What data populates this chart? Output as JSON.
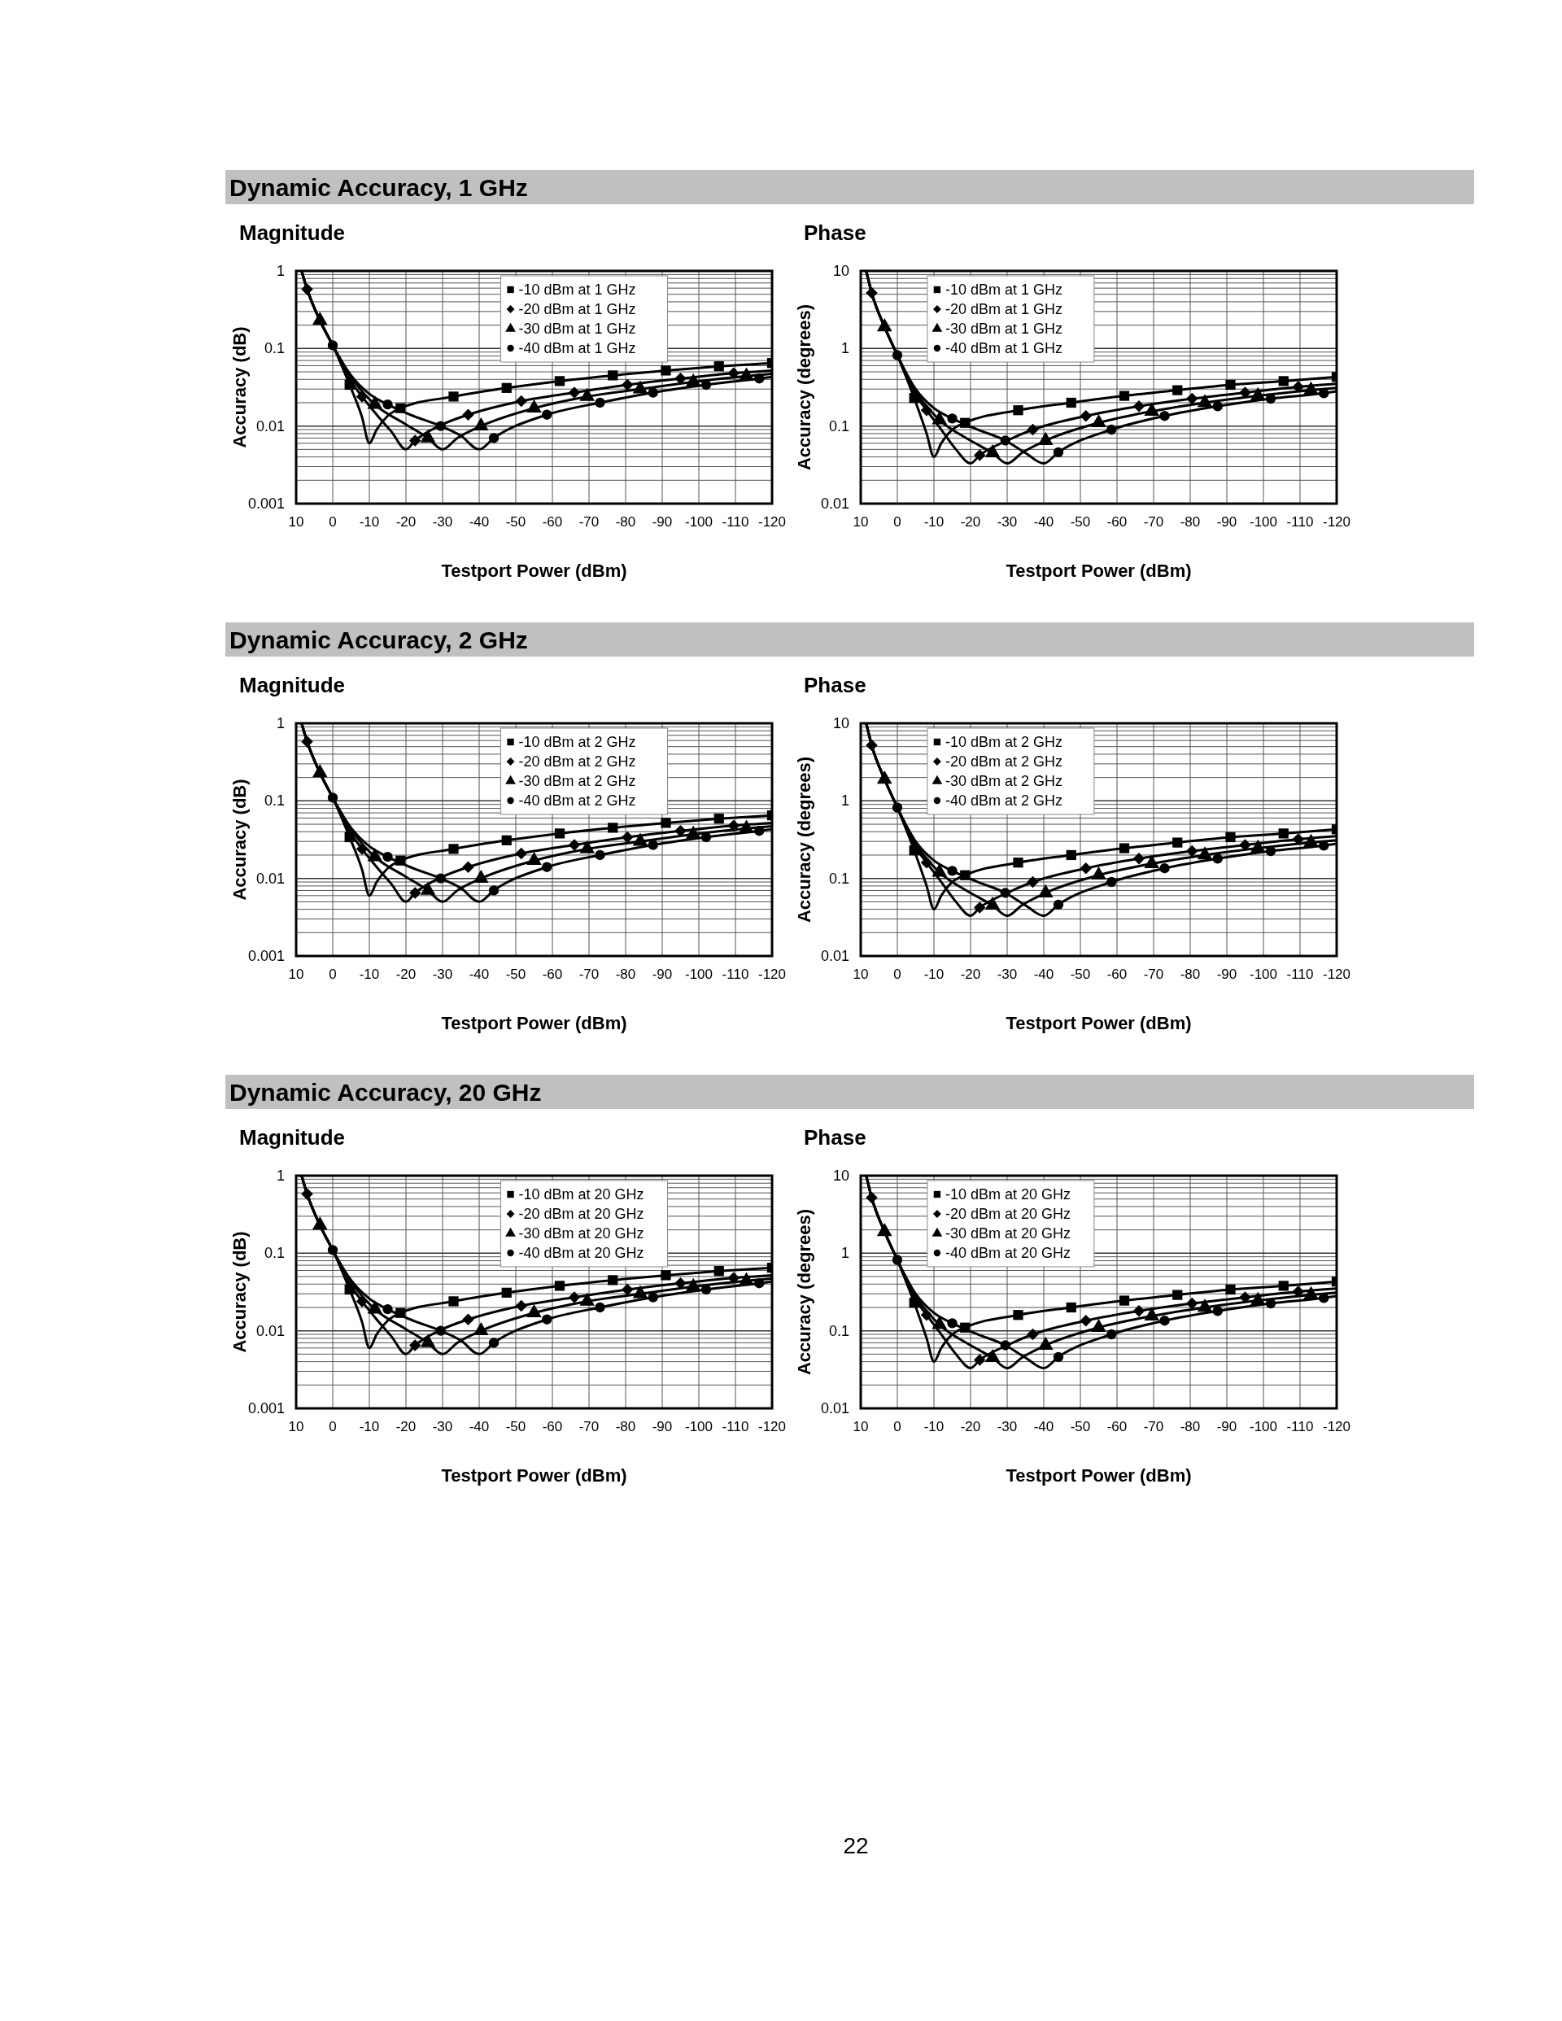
{
  "chart_data": [
    {
      "type": "line",
      "title": "Dynamic Accuracy, 1 GHz",
      "subtitle": "Magnitude",
      "xlabel": "Testport Power (dBm)",
      "ylabel": "Accuracy (dB)",
      "xlim": [
        10,
        -120
      ],
      "xticks": [
        10,
        0,
        -10,
        -20,
        -30,
        -40,
        -50,
        -60,
        -70,
        -80,
        -90,
        -100,
        -110,
        -120
      ],
      "ylim": [
        0.001,
        1
      ],
      "yticks": [
        0.001,
        0.01,
        0.1,
        1
      ],
      "log": true,
      "grid": true,
      "legend": "top",
      "series": [
        {
          "type": "line",
          "marker": "none",
          "color": "#000000",
          "x": [
            8.5,
            7,
            3.5,
            0,
            -4.6,
            -8,
            -10,
            -12,
            -15,
            -18.5,
            -33,
            -47.5,
            -62,
            -76.5,
            -91,
            -105.5,
            -120
          ],
          "values": [
            1,
            0.58,
            0.23,
            0.11,
            0.034,
            0.013,
            0.006,
            0.009,
            0.0135,
            0.017,
            0.024,
            0.031,
            0.038,
            0.045,
            0.052,
            0.059,
            0.065
          ]
        },
        {
          "type": "line",
          "marker": "none",
          "color": "#000000",
          "x": [
            8.5,
            7,
            3.5,
            0,
            -4,
            -8,
            -12,
            -16,
            -20,
            -22.5,
            -30,
            -37,
            -51.5,
            -66,
            -80.5,
            -95,
            -109.5,
            -120
          ],
          "values": [
            1,
            0.58,
            0.23,
            0.11,
            0.045,
            0.024,
            0.014,
            0.0085,
            0.005,
            0.0065,
            0.0105,
            0.014,
            0.021,
            0.027,
            0.034,
            0.041,
            0.048,
            0.052
          ]
        },
        {
          "type": "line",
          "marker": "none",
          "color": "#000000",
          "x": [
            8.5,
            7,
            3.5,
            0,
            -4,
            -8,
            -11.5,
            -20,
            -26,
            -30,
            -34,
            -40.5,
            -55,
            -69.5,
            -84,
            -98.5,
            -113,
            -120
          ],
          "values": [
            1,
            0.58,
            0.23,
            0.11,
            0.05,
            0.028,
            0.019,
            0.0105,
            0.007,
            0.005,
            0.007,
            0.01,
            0.017,
            0.024,
            0.03,
            0.037,
            0.044,
            0.047
          ]
        },
        {
          "type": "line",
          "marker": "none",
          "color": "#000000",
          "x": [
            8.5,
            7,
            3.5,
            0,
            -5,
            -10,
            -15,
            -22,
            -29.5,
            -35,
            -40,
            -44,
            -58.5,
            -73,
            -87.5,
            -102,
            -116.5,
            -120
          ],
          "values": [
            1,
            0.58,
            0.23,
            0.11,
            0.045,
            0.026,
            0.019,
            0.0135,
            0.01,
            0.0075,
            0.005,
            0.007,
            0.014,
            0.02,
            0.027,
            0.034,
            0.041,
            0.043
          ]
        },
        {
          "type": "scatter",
          "name": "-10 dBm at 1 GHz",
          "marker": "square",
          "color": "#000000",
          "x": [
            -4.6,
            -18.5,
            -33,
            -47.5,
            -62,
            -76.5,
            -91,
            -105.5,
            -120
          ],
          "values": [
            0.034,
            0.017,
            0.024,
            0.031,
            0.038,
            0.045,
            0.052,
            0.059,
            0.065
          ]
        },
        {
          "type": "scatter",
          "name": "-20 dBm at 1 GHz",
          "marker": "diamond",
          "color": "#000000",
          "x": [
            7,
            -8,
            -22.5,
            -37,
            -51.5,
            -66,
            -80.5,
            -95,
            -109.5
          ],
          "values": [
            0.58,
            0.024,
            0.0065,
            0.014,
            0.021,
            0.027,
            0.034,
            0.041,
            0.048
          ]
        },
        {
          "type": "scatter",
          "name": "-30 dBm at 1 GHz",
          "marker": "triangle",
          "color": "#000000",
          "x": [
            3.5,
            -11.5,
            -26,
            -40.5,
            -55,
            -69.5,
            -84,
            -98.5,
            -113
          ],
          "values": [
            0.23,
            0.019,
            0.007,
            0.01,
            0.017,
            0.024,
            0.03,
            0.037,
            0.044
          ]
        },
        {
          "type": "scatter",
          "name": "-40 dBm at 1 GHz",
          "marker": "circle",
          "color": "#000000",
          "x": [
            0,
            -15,
            -29.5,
            -44,
            -58.5,
            -73,
            -87.5,
            -102,
            -116.5
          ],
          "values": [
            0.11,
            0.019,
            0.01,
            0.007,
            0.014,
            0.02,
            0.027,
            0.034,
            0.041
          ]
        }
      ]
    },
    {
      "type": "line",
      "title": "Phase",
      "xlabel": "Testport Power (dBm)",
      "ylabel": "Accuracy (degrees)",
      "xlim": [
        10,
        -120
      ],
      "xticks": [
        10,
        0,
        -10,
        -20,
        -30,
        -40,
        -50,
        -60,
        -70,
        -80,
        -90,
        -100,
        -110,
        -120
      ],
      "ylim": [
        0.01,
        10
      ],
      "yticks": [
        0.01,
        0.1,
        1,
        10
      ],
      "log": true,
      "grid": true,
      "legend": "top left",
      "series": [
        {
          "type": "line",
          "marker": "none",
          "color": "#000000",
          "x": [
            8.5,
            7,
            3.5,
            0,
            -4.6,
            -8,
            -10,
            -12,
            -15,
            -18.5,
            -33,
            -47.5,
            -62,
            -76.5,
            -91,
            -105.5,
            -120
          ],
          "values": [
            10,
            5.2,
            1.9,
            0.82,
            0.23,
            0.08,
            0.04,
            0.06,
            0.09,
            0.11,
            0.16,
            0.2,
            0.245,
            0.29,
            0.34,
            0.38,
            0.43
          ]
        },
        {
          "type": "line",
          "marker": "none",
          "color": "#000000",
          "x": [
            8.5,
            7,
            3.5,
            0,
            -4,
            -8,
            -12,
            -16,
            -20,
            -22.5,
            -30,
            -37,
            -51.5,
            -66,
            -80.5,
            -95,
            -109.5,
            -120
          ],
          "values": [
            10,
            5.2,
            1.9,
            0.82,
            0.3,
            0.16,
            0.09,
            0.05,
            0.033,
            0.042,
            0.065,
            0.09,
            0.135,
            0.18,
            0.225,
            0.27,
            0.32,
            0.35
          ]
        },
        {
          "type": "line",
          "marker": "none",
          "color": "#000000",
          "x": [
            8.5,
            7,
            3.5,
            0,
            -4,
            -8,
            -11.5,
            -20,
            -26,
            -30,
            -34,
            -40.5,
            -55,
            -69.5,
            -84,
            -98.5,
            -113,
            -120
          ],
          "values": [
            10,
            5.2,
            1.9,
            0.82,
            0.33,
            0.18,
            0.12,
            0.065,
            0.045,
            0.033,
            0.045,
            0.065,
            0.11,
            0.155,
            0.2,
            0.245,
            0.29,
            0.31
          ]
        },
        {
          "type": "line",
          "marker": "none",
          "color": "#000000",
          "x": [
            8.5,
            7,
            3.5,
            0,
            -5,
            -10,
            -15,
            -22,
            -29.5,
            -35,
            -40,
            -44,
            -58.5,
            -73,
            -87.5,
            -102,
            -116.5,
            -120
          ],
          "values": [
            10,
            5.2,
            1.9,
            0.82,
            0.3,
            0.17,
            0.125,
            0.09,
            0.065,
            0.045,
            0.033,
            0.046,
            0.09,
            0.135,
            0.18,
            0.225,
            0.265,
            0.28
          ]
        },
        {
          "type": "scatter",
          "name": "-10 dBm at 1 GHz",
          "marker": "square",
          "color": "#000000",
          "x": [
            -4.6,
            -18.5,
            -33,
            -47.5,
            -62,
            -76.5,
            -91,
            -105.5,
            -120
          ],
          "values": [
            0.23,
            0.11,
            0.16,
            0.2,
            0.245,
            0.29,
            0.34,
            0.38,
            0.43
          ]
        },
        {
          "type": "scatter",
          "name": "-20 dBm at 1 GHz",
          "marker": "diamond",
          "color": "#000000",
          "x": [
            7,
            -8,
            -22.5,
            -37,
            -51.5,
            -66,
            -80.5,
            -95,
            -109.5
          ],
          "values": [
            5.2,
            0.16,
            0.042,
            0.09,
            0.135,
            0.18,
            0.225,
            0.27,
            0.32
          ]
        },
        {
          "type": "scatter",
          "name": "-30 dBm at 1 GHz",
          "marker": "triangle",
          "color": "#000000",
          "x": [
            3.5,
            -11.5,
            -26,
            -40.5,
            -55,
            -69.5,
            -84,
            -98.5,
            -113
          ],
          "values": [
            1.9,
            0.12,
            0.045,
            0.065,
            0.11,
            0.155,
            0.2,
            0.245,
            0.29
          ]
        },
        {
          "type": "scatter",
          "name": "-40 dBm at 1 GHz",
          "marker": "circle",
          "color": "#000000",
          "x": [
            0,
            -15,
            -29.5,
            -44,
            -58.5,
            -73,
            -87.5,
            -102,
            -116.5
          ],
          "values": [
            0.82,
            0.125,
            0.065,
            0.046,
            0.09,
            0.135,
            0.18,
            0.225,
            0.265
          ]
        }
      ]
    },
    {
      "type": "line",
      "title": "Dynamic Accuracy, 2 GHz",
      "subtitle": "Magnitude",
      "xlabel": "Testport Power (dBm)",
      "ylabel": "Accuracy (dB)",
      "xlim": [
        10,
        -120
      ],
      "xticks": [
        10,
        0,
        -10,
        -20,
        -30,
        -40,
        -50,
        -60,
        -70,
        -80,
        -90,
        -100,
        -110,
        -120
      ],
      "ylim": [
        0.001,
        1
      ],
      "yticks": [
        0.001,
        0.01,
        0.1,
        1
      ],
      "log": true,
      "grid": true,
      "legend": "top",
      "series": [
        {
          "type": "line",
          "marker": "none",
          "color": "#000000",
          "x": [
            8.5,
            7,
            3.5,
            0,
            -4.6,
            -8,
            -10,
            -12,
            -15,
            -18.5,
            -33,
            -47.5,
            -62,
            -76.5,
            -91,
            -105.5,
            -120
          ],
          "values": [
            1,
            0.58,
            0.23,
            0.11,
            0.034,
            0.013,
            0.006,
            0.009,
            0.0135,
            0.017,
            0.024,
            0.031,
            0.038,
            0.045,
            0.052,
            0.059,
            0.065
          ]
        },
        {
          "type": "line",
          "marker": "none",
          "color": "#000000",
          "x": [
            8.5,
            7,
            3.5,
            0,
            -4,
            -8,
            -12,
            -16,
            -20,
            -22.5,
            -30,
            -37,
            -51.5,
            -66,
            -80.5,
            -95,
            -109.5,
            -120
          ],
          "values": [
            1,
            0.58,
            0.23,
            0.11,
            0.045,
            0.024,
            0.014,
            0.0085,
            0.005,
            0.0065,
            0.0105,
            0.014,
            0.021,
            0.027,
            0.034,
            0.041,
            0.048,
            0.052
          ]
        },
        {
          "type": "line",
          "marker": "none",
          "color": "#000000",
          "x": [
            8.5,
            7,
            3.5,
            0,
            -4,
            -8,
            -11.5,
            -20,
            -26,
            -30,
            -34,
            -40.5,
            -55,
            -69.5,
            -84,
            -98.5,
            -113,
            -120
          ],
          "values": [
            1,
            0.58,
            0.23,
            0.11,
            0.05,
            0.028,
            0.019,
            0.0105,
            0.007,
            0.005,
            0.007,
            0.01,
            0.017,
            0.024,
            0.03,
            0.037,
            0.044,
            0.047
          ]
        },
        {
          "type": "line",
          "marker": "none",
          "color": "#000000",
          "x": [
            8.5,
            7,
            3.5,
            0,
            -5,
            -10,
            -15,
            -22,
            -29.5,
            -35,
            -40,
            -44,
            -58.5,
            -73,
            -87.5,
            -102,
            -116.5,
            -120
          ],
          "values": [
            1,
            0.58,
            0.23,
            0.11,
            0.045,
            0.026,
            0.019,
            0.0135,
            0.01,
            0.0075,
            0.005,
            0.007,
            0.014,
            0.02,
            0.027,
            0.034,
            0.041,
            0.043
          ]
        },
        {
          "type": "scatter",
          "name": "-10 dBm at 2 GHz",
          "marker": "square",
          "color": "#000000",
          "x": [
            -4.6,
            -18.5,
            -33,
            -47.5,
            -62,
            -76.5,
            -91,
            -105.5,
            -120
          ],
          "values": [
            0.034,
            0.017,
            0.024,
            0.031,
            0.038,
            0.045,
            0.052,
            0.059,
            0.065
          ]
        },
        {
          "type": "scatter",
          "name": "-20 dBm at 2 GHz",
          "marker": "diamond",
          "color": "#000000",
          "x": [
            7,
            -8,
            -22.5,
            -37,
            -51.5,
            -66,
            -80.5,
            -95,
            -109.5
          ],
          "values": [
            0.58,
            0.024,
            0.0065,
            0.014,
            0.021,
            0.027,
            0.034,
            0.041,
            0.048
          ]
        },
        {
          "type": "scatter",
          "name": "-30 dBm at 2 GHz",
          "marker": "triangle",
          "color": "#000000",
          "x": [
            3.5,
            -11.5,
            -26,
            -40.5,
            -55,
            -69.5,
            -84,
            -98.5,
            -113
          ],
          "values": [
            0.23,
            0.019,
            0.007,
            0.01,
            0.017,
            0.024,
            0.03,
            0.037,
            0.044
          ]
        },
        {
          "type": "scatter",
          "name": "-40 dBm at 2 GHz",
          "marker": "circle",
          "color": "#000000",
          "x": [
            0,
            -15,
            -29.5,
            -44,
            -58.5,
            -73,
            -87.5,
            -102,
            -116.5
          ],
          "values": [
            0.11,
            0.019,
            0.01,
            0.007,
            0.014,
            0.02,
            0.027,
            0.034,
            0.041
          ]
        }
      ]
    },
    {
      "type": "line",
      "title": "Phase",
      "xlabel": "Testport Power (dBm)",
      "ylabel": "Accuracy (degrees)",
      "xlim": [
        10,
        -120
      ],
      "xticks": [
        10,
        0,
        -10,
        -20,
        -30,
        -40,
        -50,
        -60,
        -70,
        -80,
        -90,
        -100,
        -110,
        -120
      ],
      "ylim": [
        0.01,
        10
      ],
      "yticks": [
        0.01,
        0.1,
        1,
        10
      ],
      "log": true,
      "grid": true,
      "legend": "top left",
      "series": [
        {
          "type": "line",
          "marker": "none",
          "color": "#000000",
          "x": [
            8.5,
            7,
            3.5,
            0,
            -4.6,
            -8,
            -10,
            -12,
            -15,
            -18.5,
            -33,
            -47.5,
            -62,
            -76.5,
            -91,
            -105.5,
            -120
          ],
          "values": [
            10,
            5.2,
            1.9,
            0.82,
            0.23,
            0.08,
            0.04,
            0.06,
            0.09,
            0.11,
            0.16,
            0.2,
            0.245,
            0.29,
            0.34,
            0.38,
            0.43
          ]
        },
        {
          "type": "line",
          "marker": "none",
          "color": "#000000",
          "x": [
            8.5,
            7,
            3.5,
            0,
            -4,
            -8,
            -12,
            -16,
            -20,
            -22.5,
            -30,
            -37,
            -51.5,
            -66,
            -80.5,
            -95,
            -109.5,
            -120
          ],
          "values": [
            10,
            5.2,
            1.9,
            0.82,
            0.3,
            0.16,
            0.09,
            0.05,
            0.033,
            0.042,
            0.065,
            0.09,
            0.135,
            0.18,
            0.225,
            0.27,
            0.32,
            0.35
          ]
        },
        {
          "type": "line",
          "marker": "none",
          "color": "#000000",
          "x": [
            8.5,
            7,
            3.5,
            0,
            -4,
            -8,
            -11.5,
            -20,
            -26,
            -30,
            -34,
            -40.5,
            -55,
            -69.5,
            -84,
            -98.5,
            -113,
            -120
          ],
          "values": [
            10,
            5.2,
            1.9,
            0.82,
            0.33,
            0.18,
            0.12,
            0.065,
            0.045,
            0.033,
            0.045,
            0.065,
            0.11,
            0.155,
            0.2,
            0.245,
            0.29,
            0.31
          ]
        },
        {
          "type": "line",
          "marker": "none",
          "color": "#000000",
          "x": [
            8.5,
            7,
            3.5,
            0,
            -5,
            -10,
            -15,
            -22,
            -29.5,
            -35,
            -40,
            -44,
            -58.5,
            -73,
            -87.5,
            -102,
            -116.5,
            -120
          ],
          "values": [
            10,
            5.2,
            1.9,
            0.82,
            0.3,
            0.17,
            0.125,
            0.09,
            0.065,
            0.045,
            0.033,
            0.046,
            0.09,
            0.135,
            0.18,
            0.225,
            0.265,
            0.28
          ]
        },
        {
          "type": "scatter",
          "name": "-10 dBm at 2 GHz",
          "marker": "square",
          "color": "#000000",
          "x": [
            -4.6,
            -18.5,
            -33,
            -47.5,
            -62,
            -76.5,
            -91,
            -105.5,
            -120
          ],
          "values": [
            0.23,
            0.11,
            0.16,
            0.2,
            0.245,
            0.29,
            0.34,
            0.38,
            0.43
          ]
        },
        {
          "type": "scatter",
          "name": "-20 dBm at 2 GHz",
          "marker": "diamond",
          "color": "#000000",
          "x": [
            7,
            -8,
            -22.5,
            -37,
            -51.5,
            -66,
            -80.5,
            -95,
            -109.5
          ],
          "values": [
            5.2,
            0.16,
            0.042,
            0.09,
            0.135,
            0.18,
            0.225,
            0.27,
            0.32
          ]
        },
        {
          "type": "scatter",
          "name": "-30 dBm at 2 GHz",
          "marker": "triangle",
          "color": "#000000",
          "x": [
            3.5,
            -11.5,
            -26,
            -40.5,
            -55,
            -69.5,
            -84,
            -98.5,
            -113
          ],
          "values": [
            1.9,
            0.12,
            0.045,
            0.065,
            0.11,
            0.155,
            0.2,
            0.245,
            0.29
          ]
        },
        {
          "type": "scatter",
          "name": "-40 dBm at 2 GHz",
          "marker": "circle",
          "color": "#000000",
          "x": [
            0,
            -15,
            -29.5,
            -44,
            -58.5,
            -73,
            -87.5,
            -102,
            -116.5
          ],
          "values": [
            0.82,
            0.125,
            0.065,
            0.046,
            0.09,
            0.135,
            0.18,
            0.225,
            0.265
          ]
        }
      ]
    },
    {
      "type": "line",
      "title": "Dynamic Accuracy, 20 GHz",
      "subtitle": "Magnitude",
      "xlabel": "Testport Power (dBm)",
      "ylabel": "Accuracy (dB)",
      "xlim": [
        10,
        -120
      ],
      "xticks": [
        10,
        0,
        -10,
        -20,
        -30,
        -40,
        -50,
        -60,
        -70,
        -80,
        -90,
        -100,
        -110,
        -120
      ],
      "ylim": [
        0.001,
        1
      ],
      "yticks": [
        0.001,
        0.01,
        0.1,
        1
      ],
      "log": true,
      "grid": true,
      "legend": "top",
      "series": [
        {
          "type": "line",
          "marker": "none",
          "color": "#000000",
          "x": [
            8.5,
            7,
            3.5,
            0,
            -4.6,
            -8,
            -10,
            -12,
            -15,
            -18.5,
            -33,
            -47.5,
            -62,
            -76.5,
            -91,
            -105.5,
            -120
          ],
          "values": [
            1,
            0.58,
            0.23,
            0.11,
            0.034,
            0.013,
            0.006,
            0.009,
            0.0135,
            0.017,
            0.024,
            0.031,
            0.038,
            0.045,
            0.052,
            0.059,
            0.065
          ]
        },
        {
          "type": "line",
          "marker": "none",
          "color": "#000000",
          "x": [
            8.5,
            7,
            3.5,
            0,
            -4,
            -8,
            -12,
            -16,
            -20,
            -22.5,
            -30,
            -37,
            -51.5,
            -66,
            -80.5,
            -95,
            -109.5,
            -120
          ],
          "values": [
            1,
            0.58,
            0.23,
            0.11,
            0.045,
            0.024,
            0.014,
            0.0085,
            0.005,
            0.0065,
            0.0105,
            0.014,
            0.021,
            0.027,
            0.034,
            0.041,
            0.048,
            0.052
          ]
        },
        {
          "type": "line",
          "marker": "none",
          "color": "#000000",
          "x": [
            8.5,
            7,
            3.5,
            0,
            -4,
            -8,
            -11.5,
            -20,
            -26,
            -30,
            -34,
            -40.5,
            -55,
            -69.5,
            -84,
            -98.5,
            -113,
            -120
          ],
          "values": [
            1,
            0.58,
            0.23,
            0.11,
            0.05,
            0.028,
            0.019,
            0.0105,
            0.007,
            0.005,
            0.007,
            0.01,
            0.017,
            0.024,
            0.03,
            0.037,
            0.044,
            0.047
          ]
        },
        {
          "type": "line",
          "marker": "none",
          "color": "#000000",
          "x": [
            8.5,
            7,
            3.5,
            0,
            -5,
            -10,
            -15,
            -22,
            -29.5,
            -35,
            -40,
            -44,
            -58.5,
            -73,
            -87.5,
            -102,
            -116.5,
            -120
          ],
          "values": [
            1,
            0.58,
            0.23,
            0.11,
            0.045,
            0.026,
            0.019,
            0.0135,
            0.01,
            0.0075,
            0.005,
            0.007,
            0.014,
            0.02,
            0.027,
            0.034,
            0.041,
            0.043
          ]
        },
        {
          "type": "scatter",
          "name": "-10 dBm at 20 GHz",
          "marker": "square",
          "color": "#000000",
          "x": [
            -4.6,
            -18.5,
            -33,
            -47.5,
            -62,
            -76.5,
            -91,
            -105.5,
            -120
          ],
          "values": [
            0.034,
            0.017,
            0.024,
            0.031,
            0.038,
            0.045,
            0.052,
            0.059,
            0.065
          ]
        },
        {
          "type": "scatter",
          "name": "-20 dBm at 20 GHz",
          "marker": "diamond",
          "color": "#000000",
          "x": [
            7,
            -8,
            -22.5,
            -37,
            -51.5,
            -66,
            -80.5,
            -95,
            -109.5
          ],
          "values": [
            0.58,
            0.024,
            0.0065,
            0.014,
            0.021,
            0.027,
            0.034,
            0.041,
            0.048
          ]
        },
        {
          "type": "scatter",
          "name": "-30 dBm at 20 GHz",
          "marker": "triangle",
          "color": "#000000",
          "x": [
            3.5,
            -11.5,
            -26,
            -40.5,
            -55,
            -69.5,
            -84,
            -98.5,
            -113
          ],
          "values": [
            0.23,
            0.019,
            0.007,
            0.01,
            0.017,
            0.024,
            0.03,
            0.037,
            0.044
          ]
        },
        {
          "type": "scatter",
          "name": "-40 dBm at 20 GHz",
          "marker": "circle",
          "color": "#000000",
          "x": [
            0,
            -15,
            -29.5,
            -44,
            -58.5,
            -73,
            -87.5,
            -102,
            -116.5
          ],
          "values": [
            0.11,
            0.019,
            0.01,
            0.007,
            0.014,
            0.02,
            0.027,
            0.034,
            0.041
          ]
        }
      ]
    },
    {
      "type": "line",
      "title": "Phase",
      "xlabel": "Testport Power (dBm)",
      "ylabel": "Accuracy (degrees)",
      "xlim": [
        10,
        -120
      ],
      "xticks": [
        10,
        0,
        -10,
        -20,
        -30,
        -40,
        -50,
        -60,
        -70,
        -80,
        -90,
        -100,
        -110,
        -120
      ],
      "ylim": [
        0.01,
        10
      ],
      "yticks": [
        0.01,
        0.1,
        1,
        10
      ],
      "log": true,
      "grid": true,
      "legend": "top left",
      "annotations": [
        "22"
      ],
      "series": [
        {
          "type": "line",
          "marker": "none",
          "color": "#000000",
          "x": [
            8.5,
            7,
            3.5,
            0,
            -4.6,
            -8,
            -10,
            -12,
            -15,
            -18.5,
            -33,
            -47.5,
            -62,
            -76.5,
            -91,
            -105.5,
            -120
          ],
          "values": [
            10,
            5.2,
            1.9,
            0.82,
            0.23,
            0.08,
            0.04,
            0.06,
            0.09,
            0.11,
            0.16,
            0.2,
            0.245,
            0.29,
            0.34,
            0.38,
            0.43
          ]
        },
        {
          "type": "line",
          "marker": "none",
          "color": "#000000",
          "x": [
            8.5,
            7,
            3.5,
            0,
            -4,
            -8,
            -12,
            -16,
            -20,
            -22.5,
            -30,
            -37,
            -51.5,
            -66,
            -80.5,
            -95,
            -109.5,
            -120
          ],
          "values": [
            10,
            5.2,
            1.9,
            0.82,
            0.3,
            0.16,
            0.09,
            0.05,
            0.033,
            0.042,
            0.065,
            0.09,
            0.135,
            0.18,
            0.225,
            0.27,
            0.32,
            0.35
          ]
        },
        {
          "type": "line",
          "marker": "none",
          "color": "#000000",
          "x": [
            8.5,
            7,
            3.5,
            0,
            -4,
            -8,
            -11.5,
            -20,
            -26,
            -30,
            -34,
            -40.5,
            -55,
            -69.5,
            -84,
            -98.5,
            -113,
            -120
          ],
          "values": [
            10,
            5.2,
            1.9,
            0.82,
            0.33,
            0.18,
            0.12,
            0.065,
            0.045,
            0.033,
            0.045,
            0.065,
            0.11,
            0.155,
            0.2,
            0.245,
            0.29,
            0.31
          ]
        },
        {
          "type": "line",
          "marker": "none",
          "color": "#000000",
          "x": [
            8.5,
            7,
            3.5,
            0,
            -5,
            -10,
            -15,
            -22,
            -29.5,
            -35,
            -40,
            -44,
            -58.5,
            -73,
            -87.5,
            -102,
            -116.5,
            -120
          ],
          "values": [
            10,
            5.2,
            1.9,
            0.82,
            0.3,
            0.17,
            0.125,
            0.09,
            0.065,
            0.045,
            0.033,
            0.046,
            0.09,
            0.135,
            0.18,
            0.225,
            0.265,
            0.28
          ]
        },
        {
          "type": "scatter",
          "name": "-10 dBm at 20 GHz",
          "marker": "square",
          "color": "#000000",
          "x": [
            -4.6,
            -18.5,
            -33,
            -47.5,
            -62,
            -76.5,
            -91,
            -105.5,
            -120
          ],
          "values": [
            0.23,
            0.11,
            0.16,
            0.2,
            0.245,
            0.29,
            0.34,
            0.38,
            0.43
          ]
        },
        {
          "type": "scatter",
          "name": "-20 dBm at 20 GHz",
          "marker": "diamond",
          "color": "#000000",
          "x": [
            7,
            -8,
            -22.5,
            -37,
            -51.5,
            -66,
            -80.5,
            -95,
            -109.5
          ],
          "values": [
            5.2,
            0.16,
            0.042,
            0.09,
            0.135,
            0.18,
            0.225,
            0.27,
            0.32
          ]
        },
        {
          "type": "scatter",
          "name": "-30 dBm at 20 GHz",
          "marker": "triangle",
          "color": "#000000",
          "x": [
            3.5,
            -11.5,
            -26,
            -40.5,
            -55,
            -69.5,
            -84,
            -98.5,
            -113
          ],
          "values": [
            1.9,
            0.12,
            0.045,
            0.065,
            0.11,
            0.155,
            0.2,
            0.245,
            0.29
          ]
        },
        {
          "type": "scatter",
          "name": "-40 dBm at 20 GHz",
          "marker": "circle",
          "color": "#000000",
          "x": [
            0,
            -15,
            -29.5,
            -44,
            -58.5,
            -73,
            -87.5,
            -102,
            -116.5
          ],
          "values": [
            0.82,
            0.125,
            0.065,
            0.046,
            0.09,
            0.135,
            0.18,
            0.225,
            0.265
          ]
        }
      ]
    }
  ]
}
